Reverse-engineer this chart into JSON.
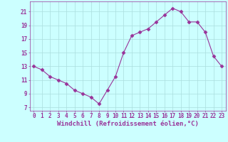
{
  "x": [
    0,
    1,
    2,
    3,
    4,
    5,
    6,
    7,
    8,
    9,
    10,
    11,
    12,
    13,
    14,
    15,
    16,
    17,
    18,
    19,
    20,
    21,
    22,
    23
  ],
  "y": [
    13,
    12.5,
    11.5,
    11,
    10.5,
    9.5,
    9,
    8.5,
    7.5,
    9.5,
    11.5,
    15,
    17.5,
    18,
    18.5,
    19.5,
    20.5,
    21.5,
    21,
    19.5,
    19.5,
    18,
    14.5,
    13
  ],
  "line_color": "#993399",
  "marker": "D",
  "marker_size": 2.5,
  "bg_color": "#ccffff",
  "grid_color": "#aadddd",
  "xlabel": "Windchill (Refroidissement éolien,°C)",
  "xlabel_fontsize": 6.5,
  "xtick_labels": [
    "0",
    "1",
    "2",
    "3",
    "4",
    "5",
    "6",
    "7",
    "8",
    "9",
    "10",
    "11",
    "12",
    "13",
    "14",
    "15",
    "16",
    "17",
    "18",
    "19",
    "20",
    "21",
    "22",
    "23"
  ],
  "ytick_labels": [
    "7",
    "9",
    "11",
    "13",
    "15",
    "17",
    "19",
    "21"
  ],
  "yticks": [
    7,
    9,
    11,
    13,
    15,
    17,
    19,
    21
  ],
  "ylim": [
    6.5,
    22.5
  ],
  "xlim": [
    -0.5,
    23.5
  ],
  "tick_color": "#993399",
  "tick_fontsize": 5.5,
  "spine_color": "#993399"
}
